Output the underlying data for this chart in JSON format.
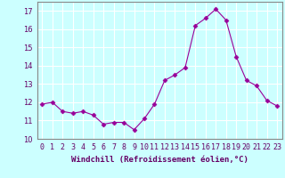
{
  "x": [
    0,
    1,
    2,
    3,
    4,
    5,
    6,
    7,
    8,
    9,
    10,
    11,
    12,
    13,
    14,
    15,
    16,
    17,
    18,
    19,
    20,
    21,
    22,
    23
  ],
  "y": [
    11.9,
    12.0,
    11.5,
    11.4,
    11.5,
    11.3,
    10.8,
    10.9,
    10.9,
    10.5,
    11.1,
    11.9,
    13.2,
    13.5,
    13.9,
    16.2,
    16.6,
    17.1,
    16.5,
    14.5,
    13.2,
    12.9,
    12.1,
    11.8
  ],
  "line_color": "#990099",
  "marker": "D",
  "marker_size": 2.5,
  "bg_color": "#ccffff",
  "grid_color": "#ffffff",
  "xlabel": "Windchill (Refroidissement éolien,°C)",
  "xlabel_fontsize": 6.5,
  "tick_fontsize": 6.0,
  "ylim": [
    10,
    17.5
  ],
  "yticks": [
    10,
    11,
    12,
    13,
    14,
    15,
    16,
    17
  ],
  "xlim": [
    -0.5,
    23.5
  ]
}
